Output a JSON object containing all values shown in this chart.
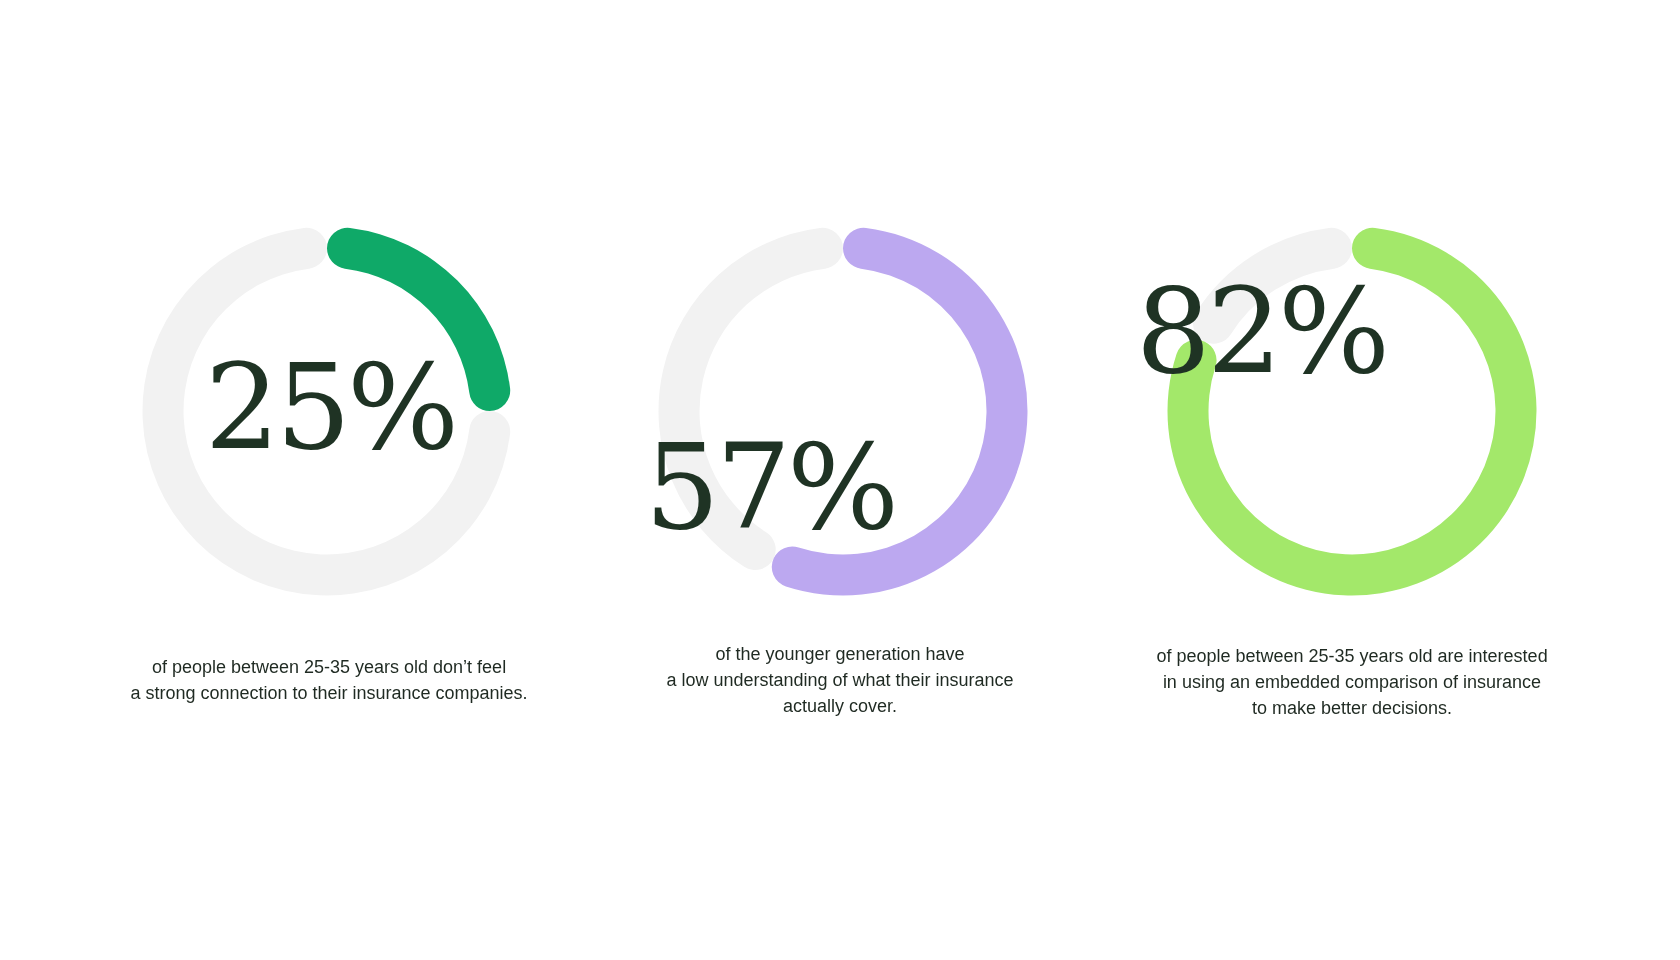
{
  "chart_data": [
    {
      "type": "donut",
      "categories": [
        null,
        null
      ],
      "values": [
        25,
        75
      ],
      "colors": [
        "#0fa968",
        "#f2f2f2"
      ],
      "value_labels": [
        "25%",
        null
      ],
      "annotations": [
        "of people between 25-35 years old don’t feel\na strong connection to their insurance companies."
      ]
    },
    {
      "type": "donut",
      "categories": [
        null,
        null
      ],
      "values": [
        57,
        43
      ],
      "colors": [
        "#bca8f0",
        "#f2f2f2"
      ],
      "value_labels": [
        "57%",
        null
      ],
      "annotations": [
        "of the younger generation have\na low understanding of what their insurance\nactually cover."
      ]
    },
    {
      "type": "donut",
      "categories": [
        null,
        null
      ],
      "values": [
        82,
        18
      ],
      "colors": [
        "#a3e86a",
        "#f2f2f2"
      ],
      "value_labels": [
        "82%",
        null
      ],
      "annotations": [
        "of people between 25-35 years old are interested\nin using an embedded comparison of insurance\nto make better decisions."
      ]
    }
  ]
}
